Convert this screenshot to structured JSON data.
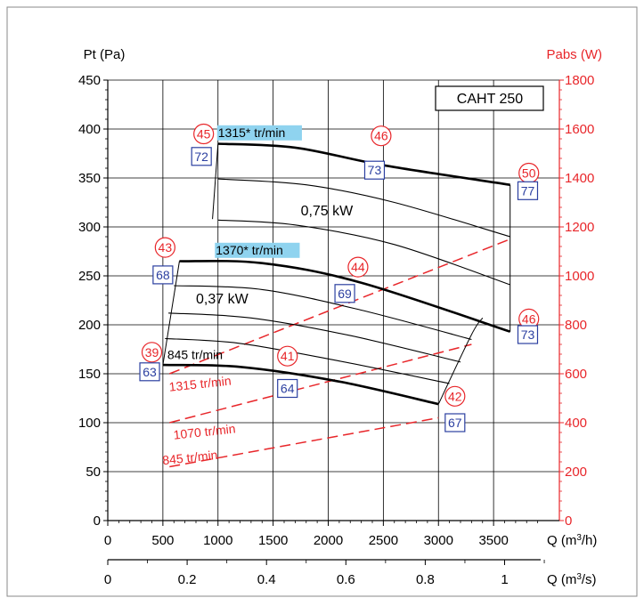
{
  "chart_data": {
    "type": "line",
    "model_label": "CAHT 250",
    "y_left": {
      "label": "Pt (Pa)",
      "min": 0,
      "max": 450,
      "ticks": [
        0,
        50,
        100,
        150,
        200,
        250,
        300,
        350,
        400,
        450
      ]
    },
    "y_right": {
      "label": "Pabs (W)",
      "min": 0,
      "max": 1800,
      "ticks": [
        0,
        200,
        400,
        600,
        800,
        1000,
        1200,
        1400,
        1600,
        1800
      ]
    },
    "x_primary": {
      "label_main": "Q (m",
      "label_sup": "3",
      "label_end": "/h)",
      "min": 0,
      "max": 4000,
      "ticks": [
        0,
        500,
        1000,
        1500,
        2000,
        2500,
        3000,
        3500
      ]
    },
    "x_secondary": {
      "label_main": "Q (m",
      "label_sup": "3",
      "label_end": "/s)",
      "ticks": [
        {
          "v": 0,
          "label": "0"
        },
        {
          "v": 0.2,
          "label": "0.2"
        },
        {
          "v": 0.4,
          "label": "0.4"
        },
        {
          "v": 0.6,
          "label": "0.6"
        },
        {
          "v": 0.8,
          "label": "0.8"
        },
        {
          "v": 1.0,
          "label": "1"
        }
      ],
      "minor": [
        0.1,
        0.3,
        0.5,
        0.7,
        0.9,
        1.1
      ]
    },
    "pressure_curves": [
      {
        "name": "1315* tr/min",
        "bold": true,
        "points": [
          [
            1000,
            385
          ],
          [
            1700,
            381
          ],
          [
            2500,
            363
          ],
          [
            3650,
            343
          ]
        ]
      },
      {
        "name": "",
        "bold": false,
        "points": [
          [
            1000,
            349
          ],
          [
            1800,
            343
          ],
          [
            2600,
            325
          ],
          [
            3650,
            290
          ]
        ]
      },
      {
        "name": "",
        "bold": false,
        "points": [
          [
            1000,
            307
          ],
          [
            1700,
            302
          ],
          [
            2600,
            282
          ],
          [
            3650,
            241
          ]
        ]
      },
      {
        "name": "1370* tr/min",
        "bold": true,
        "points": [
          [
            650,
            265
          ],
          [
            1400,
            263
          ],
          [
            2300,
            243
          ],
          [
            3650,
            193
          ]
        ]
      },
      {
        "name": "",
        "bold": false,
        "points": [
          [
            600,
            240
          ],
          [
            1400,
            236
          ],
          [
            2300,
            215
          ],
          [
            3300,
            185
          ]
        ]
      },
      {
        "name": "",
        "bold": false,
        "points": [
          [
            550,
            212
          ],
          [
            1300,
            207
          ],
          [
            2200,
            189
          ],
          [
            3200,
            162
          ]
        ]
      },
      {
        "name": "",
        "bold": false,
        "points": [
          [
            520,
            186
          ],
          [
            1200,
            181
          ],
          [
            2100,
            163
          ],
          [
            3100,
            140
          ]
        ]
      },
      {
        "name": "845 tr/min",
        "bold": true,
        "points": [
          [
            500,
            159
          ],
          [
            1200,
            157
          ],
          [
            2100,
            142
          ],
          [
            3000,
            119
          ]
        ]
      }
    ],
    "boundaries": [
      {
        "points": [
          [
            1000,
            385
          ],
          [
            950,
            308
          ]
        ]
      },
      {
        "points": [
          [
            650,
            265
          ],
          [
            500,
            159
          ]
        ]
      },
      {
        "points": [
          [
            3000,
            119
          ],
          [
            3300,
            190
          ],
          [
            3400,
            207
          ]
        ]
      },
      {
        "points": [
          [
            3650,
            343
          ],
          [
            3650,
            193
          ]
        ]
      }
    ],
    "power_curves": [
      {
        "name": "1315 tr/min",
        "points": [
          [
            560,
            600
          ],
          [
            3650,
            1150
          ]
        ]
      },
      {
        "name": "1070 tr/min",
        "points": [
          [
            560,
            400
          ],
          [
            3300,
            720
          ]
        ]
      },
      {
        "name": "845 tr/min",
        "points": [
          [
            560,
            220
          ],
          [
            3000,
            420
          ]
        ]
      }
    ],
    "power_labels": [
      {
        "text": "1315 tr/min",
        "x": 560,
        "y": 132,
        "rot": -6
      },
      {
        "text": "1070 tr/min",
        "x": 600,
        "y": 83,
        "rot": -6
      },
      {
        "text": "845 tr/min",
        "x": 500,
        "y": 57,
        "rot": -6
      }
    ],
    "speed_labels": [
      {
        "text": "1315* tr/min",
        "x": 1000,
        "y": 392,
        "highlight": true
      },
      {
        "text": "1370* tr/min",
        "x": 980,
        "y": 272,
        "highlight": true
      },
      {
        "text": "845 tr/min",
        "x": 540,
        "y": 165,
        "highlight": false
      }
    ],
    "kw_labels": [
      {
        "text": "0,75 kW",
        "x": 1750,
        "y": 312
      },
      {
        "text": "0,37 kW",
        "x": 800,
        "y": 222
      }
    ],
    "circle_labels": [
      {
        "text": "45",
        "x": 870,
        "y": 395
      },
      {
        "text": "46",
        "x": 2480,
        "y": 393
      },
      {
        "text": "50",
        "x": 3820,
        "y": 355
      },
      {
        "text": "43",
        "x": 520,
        "y": 279
      },
      {
        "text": "44",
        "x": 2270,
        "y": 259
      },
      {
        "text": "46",
        "x": 3820,
        "y": 206
      },
      {
        "text": "39",
        "x": 400,
        "y": 172
      },
      {
        "text": "41",
        "x": 1630,
        "y": 168
      },
      {
        "text": "42",
        "x": 3150,
        "y": 127
      }
    ],
    "box_labels": [
      {
        "text": "72",
        "x": 850,
        "y": 372
      },
      {
        "text": "73",
        "x": 2420,
        "y": 358
      },
      {
        "text": "77",
        "x": 3810,
        "y": 337
      },
      {
        "text": "68",
        "x": 500,
        "y": 251
      },
      {
        "text": "69",
        "x": 2150,
        "y": 232
      },
      {
        "text": "73",
        "x": 3810,
        "y": 190
      },
      {
        "text": "63",
        "x": 380,
        "y": 152
      },
      {
        "text": "64",
        "x": 1630,
        "y": 135
      },
      {
        "text": "67",
        "x": 3150,
        "y": 100
      }
    ],
    "colors": {
      "red": "#e8262a",
      "blue": "#2b3fa0",
      "highlight": "#8fd3ef",
      "grid": "#000000"
    }
  }
}
